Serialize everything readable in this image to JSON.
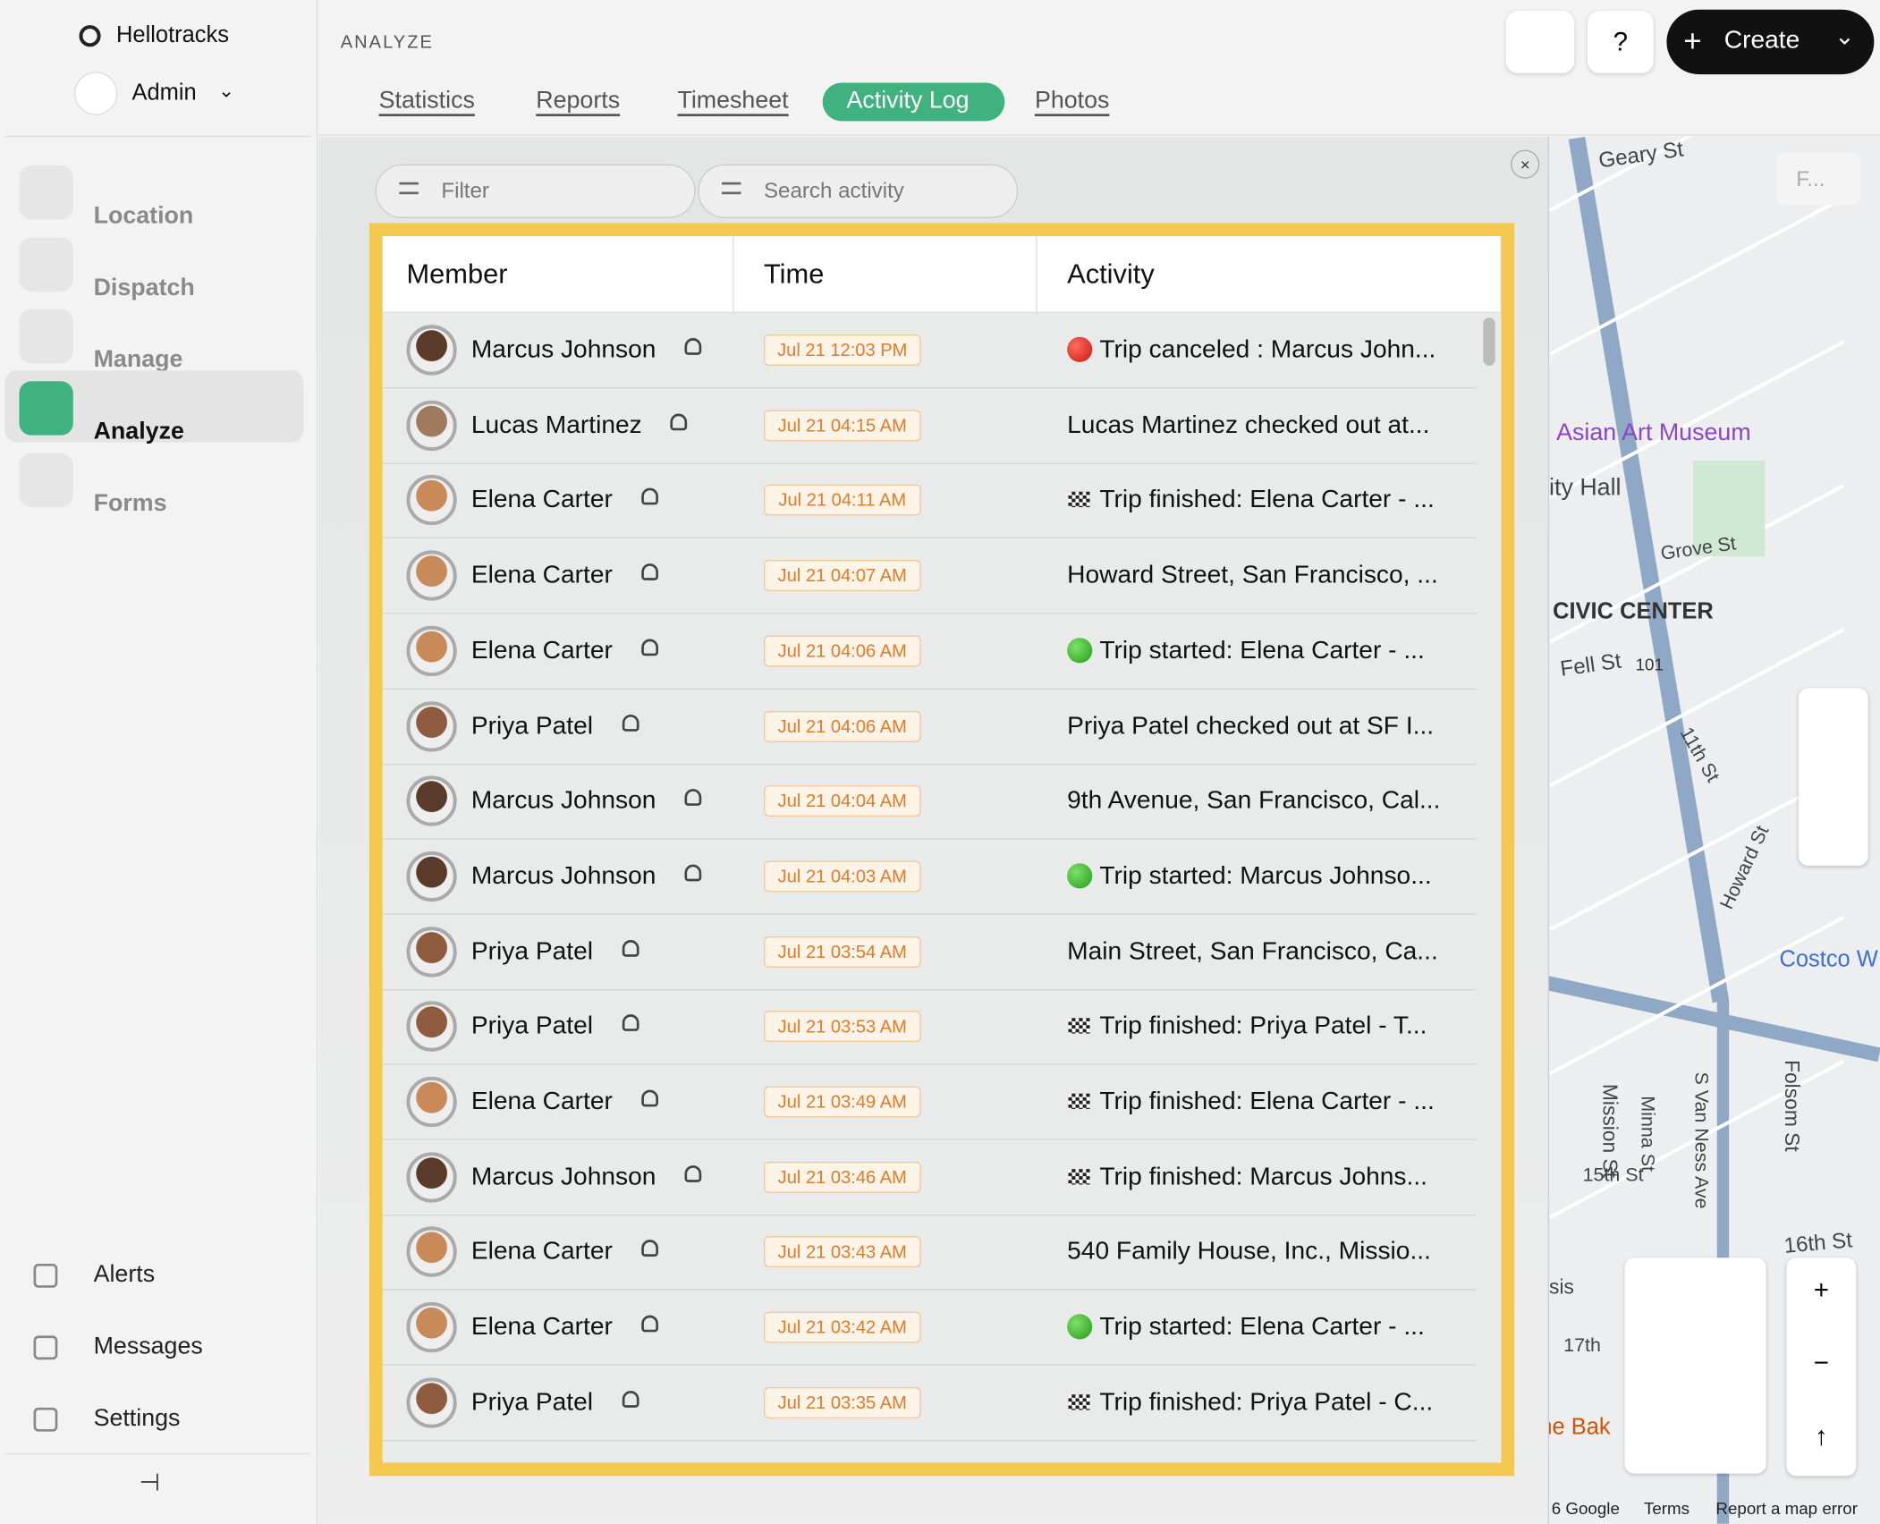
{
  "sidebar": {
    "brand": "Hellotracks",
    "user": "Admin",
    "nav": [
      "Location",
      "Dispatch",
      "Manage",
      "Analyze",
      "Forms"
    ],
    "active": 3,
    "bottom": [
      "Alerts",
      "Messages",
      "Settings"
    ]
  },
  "header": {
    "section": "ANALYZE",
    "tabs": [
      "Statistics",
      "Reports",
      "Timesheet",
      "Activity Log",
      "Photos"
    ],
    "active_tab": 3,
    "help": "?",
    "create": "Create"
  },
  "filters": {
    "filter": "Filter",
    "search": "Search activity"
  },
  "table": {
    "columns": [
      "Member",
      "Time",
      "Activity"
    ],
    "rows": [
      [
        "Marcus Johnson",
        "Jul 21 12:03 PM",
        "Trip canceled : Marcus John..."
      ],
      [
        "Lucas Martinez",
        "Jul 21 04:15 AM",
        "Lucas Martinez checked out at..."
      ],
      [
        "Elena Carter",
        "Jul 21 04:11 AM",
        "Trip finished: Elena Carter - ..."
      ],
      [
        "Elena Carter",
        "Jul 21 04:07 AM",
        "Howard Street, San Francisco, ..."
      ],
      [
        "Elena Carter",
        "Jul 21 04:06 AM",
        "Trip started: Elena Carter - ..."
      ],
      [
        "Priya Patel",
        "Jul 21 04:06 AM",
        "Priya Patel checked out at SF I..."
      ],
      [
        "Marcus Johnson",
        "Jul 21 04:04 AM",
        "9th Avenue, San Francisco, Cal..."
      ],
      [
        "Marcus Johnson",
        "Jul 21 04:03 AM",
        "Trip started: Marcus Johnso..."
      ],
      [
        "Priya Patel",
        "Jul 21 03:54 AM",
        "Main Street, San Francisco, Ca..."
      ],
      [
        "Priya Patel",
        "Jul 21 03:53 AM",
        "Trip finished: Priya Patel - T..."
      ],
      [
        "Elena Carter",
        "Jul 21 03:49 AM",
        "Trip finished: Elena Carter - ..."
      ],
      [
        "Marcus Johnson",
        "Jul 21 03:46 AM",
        "Trip finished: Marcus Johns..."
      ],
      [
        "Elena Carter",
        "Jul 21 03:43 AM",
        "540 Family House, Inc., Missio..."
      ],
      [
        "Elena Carter",
        "Jul 21 03:42 AM",
        "Trip started: Elena Carter - ..."
      ],
      [
        "Priya Patel",
        "Jul 21 03:35 AM",
        "Trip finished: Priya Patel - C..."
      ]
    ],
    "icons": [
      "red",
      null,
      "flag",
      null,
      "green",
      null,
      null,
      "green",
      null,
      "flag",
      "flag",
      "flag",
      null,
      "green",
      "flag"
    ]
  },
  "map": {
    "search": "F...",
    "labels": [
      "Geary St",
      "Asian Art Museum",
      "ity Hall",
      "Grove St",
      "CIVIC CENTER",
      "Fell St",
      "101",
      "11th St",
      "Howard St",
      "Costco W",
      "Mission St",
      "Minna St",
      "S Van Ness Ave",
      "Folsom St",
      "15th St",
      "16th St",
      "17th",
      "sis",
      "ne Bak"
    ],
    "footer": [
      "6 Google",
      "Terms",
      "Report a map error"
    ]
  }
}
